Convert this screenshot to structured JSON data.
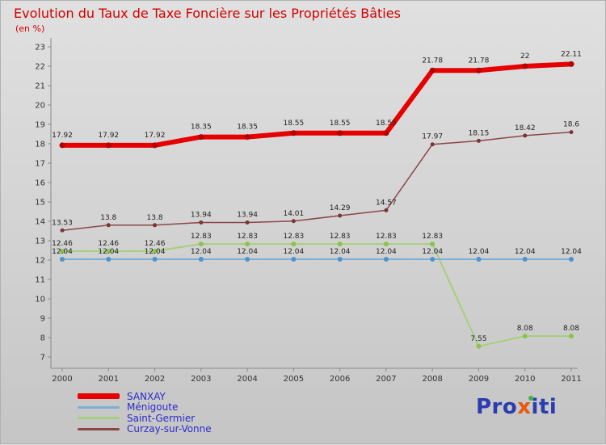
{
  "title": "Evolution du Taux de Taxe Foncière sur les Propriétés Bâties",
  "subtitle": "(en %)",
  "colors": {
    "title": "#d40000",
    "legend_text": "#2b2bcc",
    "axis": "#8a8a8a",
    "tick_text": "#333333",
    "value_label_text": "#222222"
  },
  "logo": {
    "part1": "Pro",
    "part2": "x",
    "part3": "iti"
  },
  "chart_data": {
    "type": "line",
    "title": "Evolution du Taux de Taxe Foncière sur les Propriétés Bâties",
    "subtitle": "(en %)",
    "xlabel": "",
    "ylabel": "",
    "grid": false,
    "legend_position": "bottom-left",
    "x": [
      2000,
      2001,
      2002,
      2003,
      2004,
      2005,
      2006,
      2007,
      2008,
      2009,
      2010,
      2011
    ],
    "ylim": [
      7,
      23
    ],
    "yticks": [
      7,
      8,
      9,
      10,
      11,
      12,
      13,
      14,
      15,
      16,
      17,
      18,
      19,
      20,
      21,
      22,
      23
    ],
    "series": [
      {
        "name": "SANXAY",
        "color": "#e60000",
        "marker_color": "#b30000",
        "width": 6,
        "marker_r": 3.5,
        "label_dy": 10,
        "values": [
          17.92,
          17.92,
          17.92,
          18.35,
          18.35,
          18.55,
          18.55,
          18.55,
          21.78,
          21.78,
          22,
          22.11
        ],
        "labels": [
          "17.92",
          "17.92",
          "17.92",
          "18.35",
          "18.35",
          "18.55",
          "18.55",
          "18.55",
          "21.78",
          "21.78",
          "22",
          "22.11"
        ]
      },
      {
        "name": "Ménigoute",
        "color": "#7bafd4",
        "marker_color": "#4f93ce",
        "width": 2,
        "marker_r": 3,
        "label_dy": 7,
        "values": [
          12.04,
          12.04,
          12.04,
          12.04,
          12.04,
          12.04,
          12.04,
          12.04,
          12.04,
          12.04,
          12.04,
          12.04
        ],
        "labels": [
          "12.04",
          "12.04",
          "12.04",
          "12.04",
          "12.04",
          "12.04",
          "12.04",
          "12.04",
          "12.04",
          "12.04",
          "12.04",
          "12.04"
        ]
      },
      {
        "name": "Saint-Germier",
        "color": "#a6cf7a",
        "marker_color": "#8bc34a",
        "width": 2,
        "marker_r": 3,
        "label_dy": 7,
        "values": [
          12.46,
          12.46,
          12.46,
          12.83,
          12.83,
          12.83,
          12.83,
          12.83,
          12.83,
          7.55,
          8.08,
          8.08
        ],
        "labels": [
          "12.46",
          "12.46",
          "12.46",
          "12.83",
          "12.83",
          "12.83",
          "12.83",
          "12.83",
          "12.83",
          "7.55",
          "8.08",
          "8.08"
        ]
      },
      {
        "name": "Curzay-sur-Vonne",
        "color": "#8c4646",
        "marker_color": "#7a3535",
        "width": 1.5,
        "marker_r": 2.5,
        "label_dy": 7,
        "values": [
          13.53,
          13.8,
          13.8,
          13.94,
          13.94,
          14.01,
          14.29,
          14.57,
          17.97,
          18.15,
          18.42,
          18.6
        ],
        "labels": [
          "13.53",
          "13.8",
          "13.8",
          "13.94",
          "13.94",
          "14.01",
          "14.29",
          "14.57",
          "17.97",
          "18.15",
          "18.42",
          "18.6"
        ]
      }
    ]
  }
}
